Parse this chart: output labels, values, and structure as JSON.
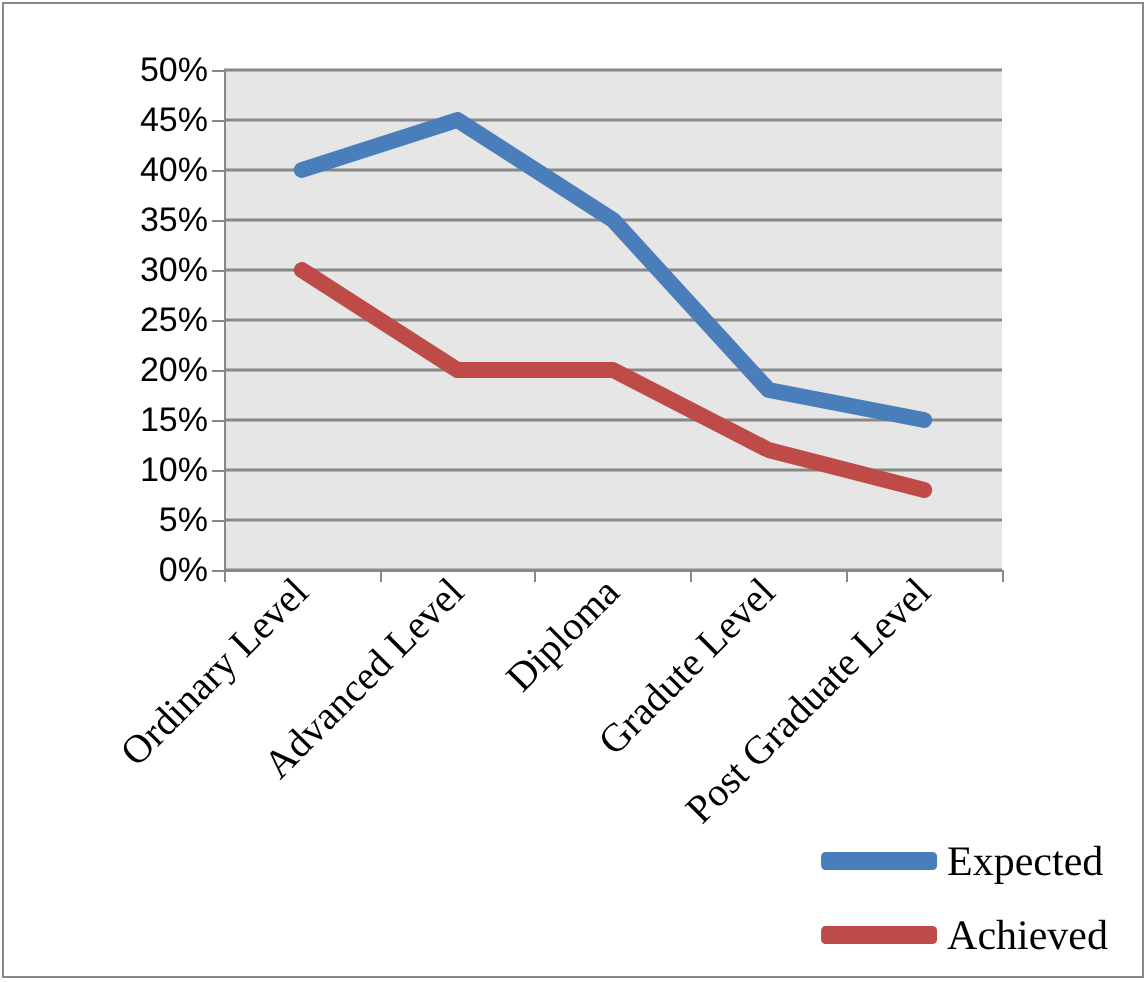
{
  "chart_data": {
    "type": "line",
    "categories": [
      "Ordinary Level",
      "Advanced Level",
      "Diploma",
      "Gradute Level",
      "Post Graduate Level"
    ],
    "series": [
      {
        "name": "Expected",
        "color": "#4a7ebb",
        "values": [
          40,
          45,
          35,
          18,
          15
        ]
      },
      {
        "name": "Achieved",
        "color": "#be4b48",
        "values": [
          30,
          20,
          20,
          12,
          8
        ]
      }
    ],
    "ylim": [
      0,
      50
    ],
    "yticks": [
      {
        "value": 0,
        "label": "0%"
      },
      {
        "value": 5,
        "label": "5%"
      },
      {
        "value": 10,
        "label": "10%"
      },
      {
        "value": 15,
        "label": "15%"
      },
      {
        "value": 20,
        "label": "20%"
      },
      {
        "value": 25,
        "label": "25%"
      },
      {
        "value": 30,
        "label": "30%"
      },
      {
        "value": 35,
        "label": "35%"
      },
      {
        "value": 40,
        "label": "40%"
      },
      {
        "value": 45,
        "label": "45%"
      },
      {
        "value": 50,
        "label": "50%"
      }
    ],
    "grid": "y",
    "legend": "bottom right",
    "line_style": "solid"
  }
}
